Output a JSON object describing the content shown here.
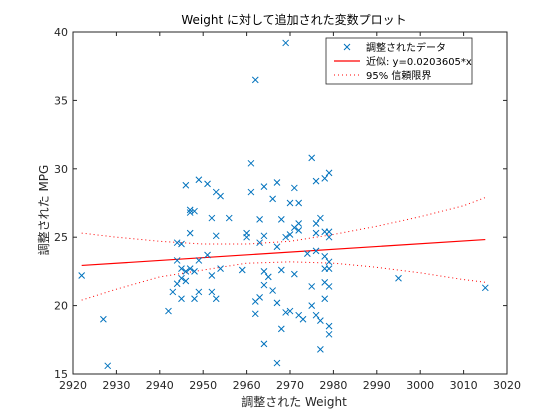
{
  "chart_data": {
    "type": "scatter",
    "title": "Weight に対して追加された変数プロット",
    "xlabel": "調整された Weight",
    "ylabel": "調整された MPG",
    "xlim": [
      2920,
      3020
    ],
    "ylim": [
      15,
      40
    ],
    "xticks": [
      2920,
      2930,
      2940,
      2950,
      2960,
      2970,
      2980,
      2990,
      3000,
      3010,
      3020
    ],
    "yticks": [
      15,
      20,
      25,
      30,
      35,
      40
    ],
    "grid": false,
    "legend_position": "top-right",
    "legend": [
      {
        "label": "調整されたデータ",
        "style": "marker-x",
        "color": "#0072BD"
      },
      {
        "label": "近似: y=0.0203605*x",
        "style": "solid",
        "color": "#FF0000"
      },
      {
        "label": "95% 信頼限界",
        "style": "dotted",
        "color": "#FF0000"
      }
    ],
    "series": [
      {
        "name": "調整されたデータ",
        "color": "#0072BD",
        "points": [
          [
            2922,
            22.2
          ],
          [
            2927,
            19
          ],
          [
            2928,
            15.6
          ],
          [
            2942,
            19.6
          ],
          [
            2943,
            21
          ],
          [
            2944,
            23.3
          ],
          [
            2944,
            24.6
          ],
          [
            2944,
            21.6
          ],
          [
            2945,
            24.5
          ],
          [
            2945,
            22.7
          ],
          [
            2945,
            22
          ],
          [
            2945,
            20.5
          ],
          [
            2946,
            21.8
          ],
          [
            2946,
            28.8
          ],
          [
            2946,
            22.5
          ],
          [
            2947,
            27
          ],
          [
            2947,
            25.3
          ],
          [
            2947,
            26.8
          ],
          [
            2947,
            22.7
          ],
          [
            2948,
            26.9
          ],
          [
            2948,
            22.5
          ],
          [
            2948,
            20.5
          ],
          [
            2949,
            23.3
          ],
          [
            2949,
            29.2
          ],
          [
            2949,
            21
          ],
          [
            2951,
            28.9
          ],
          [
            2951,
            23.7
          ],
          [
            2952,
            26.4
          ],
          [
            2952,
            22.2
          ],
          [
            2952,
            21
          ],
          [
            2953,
            28.3
          ],
          [
            2953,
            20.5
          ],
          [
            2953,
            25.1
          ],
          [
            2954,
            28
          ],
          [
            2954,
            22.7
          ],
          [
            2956,
            26.4
          ],
          [
            2959,
            22.6
          ],
          [
            2960,
            25
          ],
          [
            2960,
            25.3
          ],
          [
            2961,
            30.4
          ],
          [
            2961,
            28.3
          ],
          [
            2962,
            36.5
          ],
          [
            2962,
            19.4
          ],
          [
            2962,
            20.3
          ],
          [
            2963,
            24.6
          ],
          [
            2963,
            26.3
          ],
          [
            2963,
            20.6
          ],
          [
            2964,
            25.1
          ],
          [
            2964,
            22.5
          ],
          [
            2964,
            17.2
          ],
          [
            2964,
            28.7
          ],
          [
            2964,
            21.5
          ],
          [
            2965,
            22.1
          ],
          [
            2966,
            27.8
          ],
          [
            2966,
            21.1
          ],
          [
            2967,
            24.3
          ],
          [
            2967,
            20.2
          ],
          [
            2967,
            15.8
          ],
          [
            2967,
            29
          ],
          [
            2968,
            18.3
          ],
          [
            2968,
            26.3
          ],
          [
            2968,
            22.6
          ],
          [
            2969,
            25
          ],
          [
            2969,
            19.5
          ],
          [
            2969,
            39.2
          ],
          [
            2970,
            25.2
          ],
          [
            2970,
            19.6
          ],
          [
            2970,
            27.5
          ],
          [
            2971,
            25.7
          ],
          [
            2971,
            28.6
          ],
          [
            2971,
            22.3
          ],
          [
            2972,
            25.5
          ],
          [
            2972,
            27.5
          ],
          [
            2972,
            19.3
          ],
          [
            2972,
            26
          ],
          [
            2973,
            19
          ],
          [
            2974,
            23.8
          ],
          [
            2975,
            30.8
          ],
          [
            2975,
            21.4
          ],
          [
            2975,
            20
          ],
          [
            2976,
            29.1
          ],
          [
            2976,
            25.3
          ],
          [
            2976,
            26
          ],
          [
            2976,
            24
          ],
          [
            2976,
            19.3
          ],
          [
            2977,
            16.8
          ],
          [
            2977,
            18.9
          ],
          [
            2977,
            26.4
          ],
          [
            2978,
            29.3
          ],
          [
            2978,
            25.4
          ],
          [
            2978,
            23.6
          ],
          [
            2978,
            22.7
          ],
          [
            2978,
            21.7
          ],
          [
            2978,
            20.5
          ],
          [
            2979,
            29.7
          ],
          [
            2979,
            25.4
          ],
          [
            2979,
            25
          ],
          [
            2979,
            23.2
          ],
          [
            2979,
            22.7
          ],
          [
            2979,
            21.4
          ],
          [
            2979,
            18.5
          ],
          [
            2979,
            17.9
          ],
          [
            2995,
            22
          ],
          [
            3015,
            21.3
          ]
        ]
      }
    ],
    "fit": {
      "name": "近似: y=0.0203605*x",
      "slope": 0.0203605,
      "x": [
        2922,
        3015
      ],
      "color": "#FF0000"
    },
    "confidence_bounds": {
      "name": "95% 信頼限界",
      "color": "#FF0000",
      "x": [
        2922,
        2930,
        2940,
        2950,
        2960,
        2970,
        2980,
        2990,
        3000,
        3010,
        3015
      ],
      "upper": [
        25.3,
        25.0,
        24.7,
        24.5,
        24.5,
        24.7,
        25.2,
        25.8,
        26.5,
        27.3,
        27.9
      ],
      "lower": [
        20.4,
        21.2,
        22.1,
        22.6,
        23.1,
        23.2,
        23.1,
        22.8,
        22.4,
        21.9,
        21.7
      ]
    }
  }
}
